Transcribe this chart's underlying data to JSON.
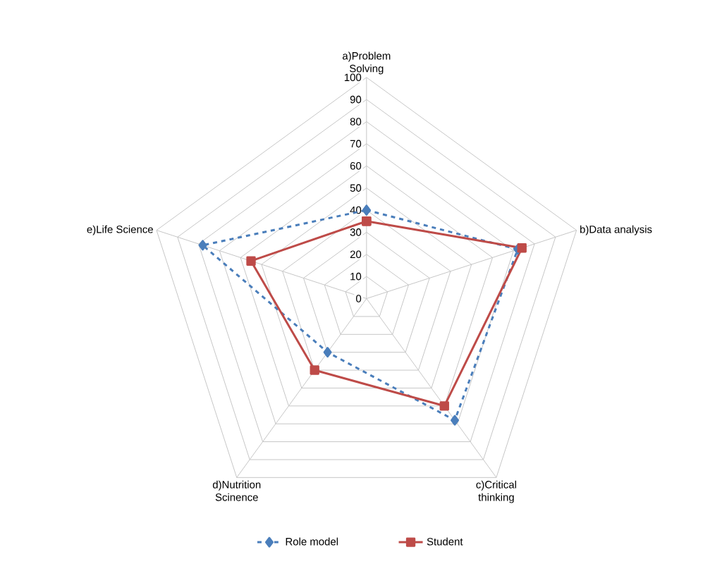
{
  "chart_data": {
    "type": "radar",
    "categories": [
      "a)Problem Solving",
      "b)Data analysis",
      "c)Critical thinking",
      "d)Nutrition Scinence",
      "e)Life Science"
    ],
    "ylim": [
      0,
      100
    ],
    "yticks": [
      0,
      10,
      20,
      30,
      40,
      50,
      60,
      70,
      80,
      90,
      100
    ],
    "grid": true,
    "legend": "bottom",
    "series": [
      {
        "name": "Role model",
        "color": "#4a7ebb",
        "marker": "diamond",
        "line_style": "dashed",
        "values": [
          40,
          72,
          68,
          30,
          78
        ]
      },
      {
        "name": "Student",
        "color": "#be4b48",
        "marker": "square",
        "line_style": "solid",
        "values": [
          35,
          74,
          60,
          40,
          55
        ]
      }
    ]
  }
}
